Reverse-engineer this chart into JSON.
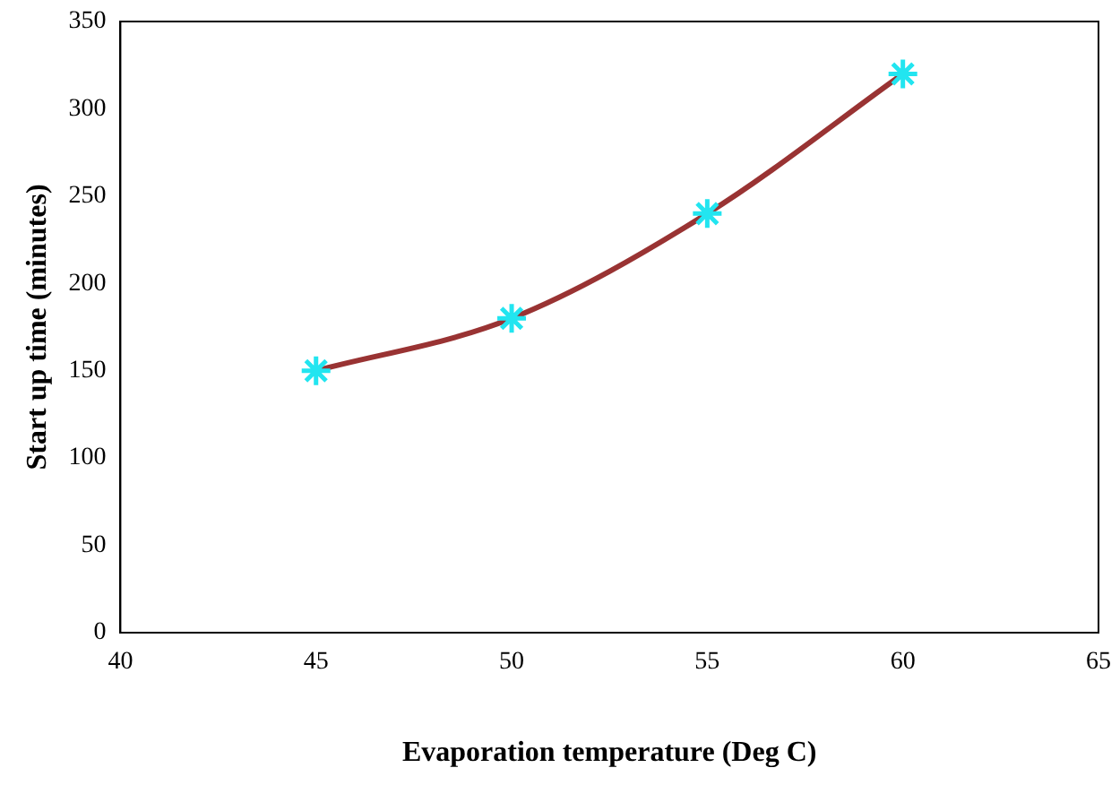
{
  "chart_data": {
    "type": "line",
    "xlabel": "Evaporation temperature (Deg C)",
    "ylabel": "Start up time (minutes)",
    "x": [
      45,
      50,
      55,
      60
    ],
    "series": [
      {
        "color": "#993333",
        "values": [
          150,
          180,
          240,
          320
        ]
      }
    ],
    "xlim": [
      40,
      65
    ],
    "xticks": [
      40,
      45,
      50,
      55,
      60,
      65
    ],
    "ylim": [
      0,
      350
    ],
    "yticks": [
      0,
      50,
      100,
      150,
      200,
      250,
      300,
      350
    ],
    "grid": false,
    "legend": false,
    "marker": "cross",
    "line_style": "solid"
  }
}
